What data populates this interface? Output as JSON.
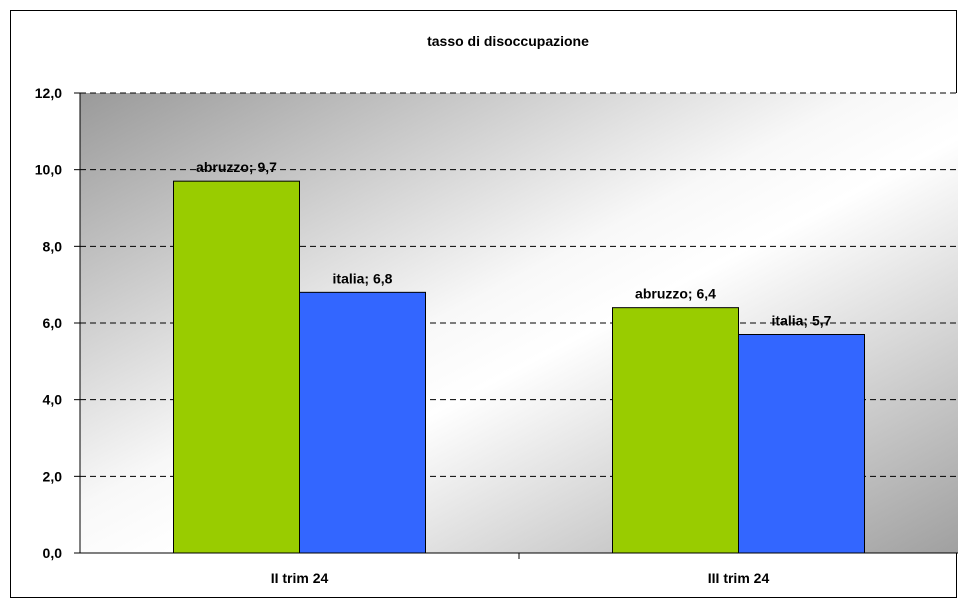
{
  "chart_data": {
    "type": "bar",
    "title": "tasso di disoccupazione",
    "xlabel": "",
    "ylabel": "",
    "categories": [
      "II trim 24",
      "III trim 24"
    ],
    "series": [
      {
        "name": "abruzzo",
        "values": [
          9.7,
          6.4
        ],
        "color": "#99cc00"
      },
      {
        "name": "italia",
        "values": [
          6.8,
          5.7
        ],
        "color": "#3366ff"
      }
    ],
    "data_labels": [
      [
        "abruzzo; 9,7",
        "abruzzo; 6,4"
      ],
      [
        "italia; 6,8",
        "italia; 5,7"
      ]
    ],
    "ylim": [
      0,
      12
    ],
    "yticks": [
      "0,0",
      "2,0",
      "4,0",
      "6,0",
      "8,0",
      "10,0",
      "12,0"
    ],
    "ytick_values": [
      0,
      2,
      4,
      6,
      8,
      10,
      12
    ],
    "grid": true,
    "legend": "none",
    "plot_background": "gradient grey-white"
  }
}
